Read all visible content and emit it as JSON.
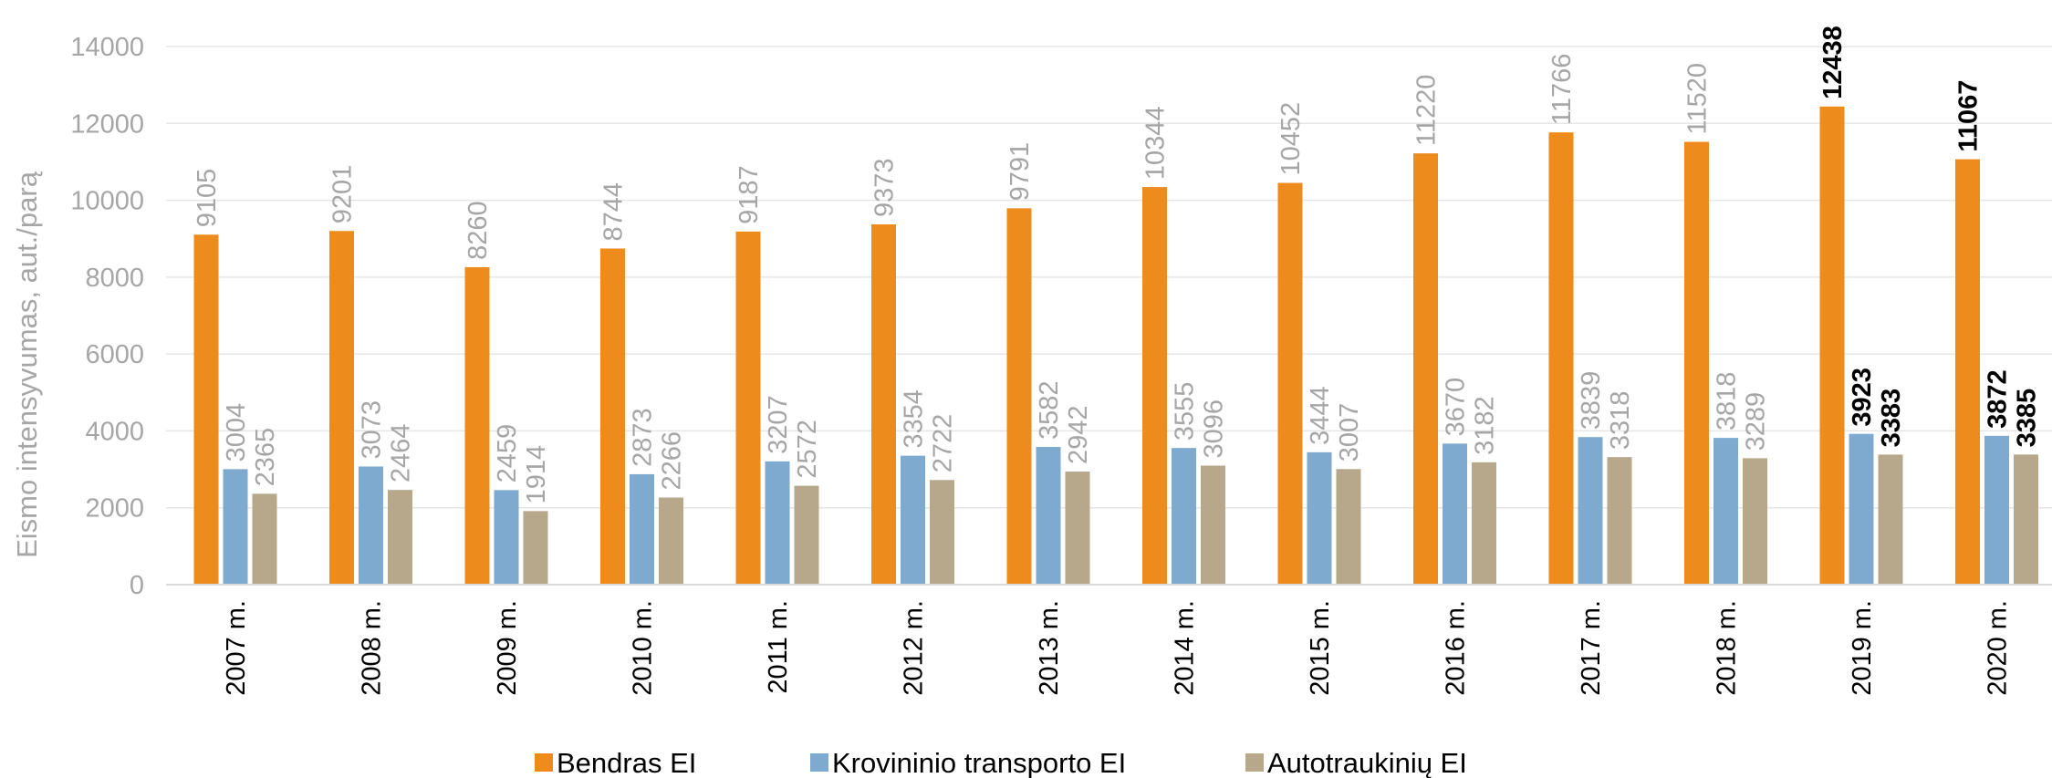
{
  "chart_data": {
    "type": "bar",
    "ylabel": "Eismo intensyvumas, aut./parą",
    "ylim": [
      0,
      14000
    ],
    "yticks": [
      "0",
      "2000",
      "4000",
      "6000",
      "8000",
      "10000",
      "12000",
      "14000"
    ],
    "grid": true,
    "legend_position": "bottom",
    "categories": [
      "2007 m.",
      "2008 m.",
      "2009 m.",
      "2010 m.",
      "2011 m.",
      "2012 m.",
      "2013 m.",
      "2014 m.",
      "2015 m.",
      "2016 m.",
      "2017 m.",
      "2018 m.",
      "2019 m.",
      "2020 m."
    ],
    "series": [
      {
        "name": "Bendras EI",
        "color": "#ed8b1c",
        "values": [
          9105,
          9201,
          8260,
          8744,
          9187,
          9373,
          9791,
          10344,
          10452,
          11220,
          11766,
          11520,
          12438,
          11067
        ]
      },
      {
        "name": "Krovininio transporto EI",
        "color": "#7eaacf",
        "values": [
          3004,
          3073,
          2459,
          2873,
          3207,
          3354,
          3582,
          3555,
          3444,
          3670,
          3839,
          3818,
          3923,
          3872
        ]
      },
      {
        "name": "Autotraukinių EI",
        "color": "#b7a78b",
        "values": [
          2365,
          2464,
          1914,
          2266,
          2572,
          2722,
          2942,
          3096,
          3007,
          3182,
          3318,
          3289,
          3383,
          3385
        ]
      }
    ],
    "bold_label_categories": [
      "2019 m.",
      "2020 m."
    ]
  }
}
